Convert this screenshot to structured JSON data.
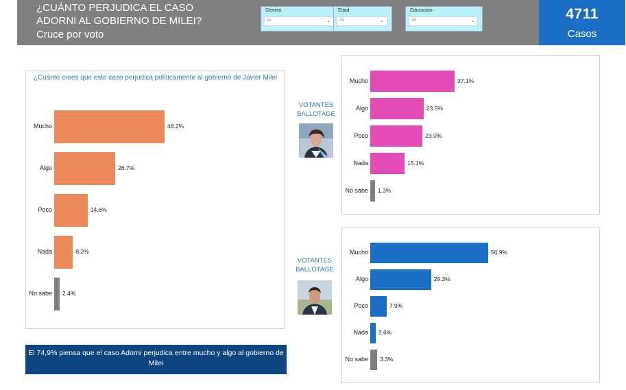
{
  "header": {
    "title": "¿CUÁNTO PERJUDICA EL CASO ADORNI AL GOBIERNO DE MILEI?",
    "subtitle": "Cruce por voto"
  },
  "filters": [
    {
      "label": "Género",
      "value": "All"
    },
    {
      "label": "Edad",
      "value": "All"
    },
    {
      "label": "Educación",
      "value": "All"
    }
  ],
  "cases": {
    "count": "4711",
    "label": "Casos"
  },
  "vot_label": "VOTANTES BALLOTAGE",
  "banner": "El 74,9% piensa que el caso Adorni perjudica entre mucho y algo al gobierno de Milei",
  "colors": {
    "overall": "#ec8a5e",
    "milei": "#e24bb5",
    "massa": "#1a6fc4",
    "no_sabe": "#7f7f7f"
  },
  "chart_data": [
    {
      "type": "bar",
      "orientation": "horizontal",
      "title": "¿Cuánto crees que este caso perjudica políticamente al gobierno de Javier Milei",
      "categories": [
        "Mucho",
        "Algo",
        "Poco",
        "Nada",
        "No sabe"
      ],
      "values": [
        48.2,
        26.7,
        14.6,
        8.2,
        2.4
      ],
      "labels": [
        "48.2%",
        "26.7%",
        "14.6%",
        "8.2%",
        "2.4%"
      ]
    },
    {
      "type": "bar",
      "orientation": "horizontal",
      "title": "",
      "categories": [
        "Mucho",
        "Algo",
        "Poco",
        "Nada",
        "No sabe"
      ],
      "values": [
        37.1,
        23.5,
        23.0,
        15.1,
        1.3
      ],
      "labels": [
        "37.1%",
        "23.5%",
        "23.0%",
        "15.1%",
        "1.3%"
      ]
    },
    {
      "type": "bar",
      "orientation": "horizontal",
      "title": "",
      "categories": [
        "Mucho",
        "Algo",
        "Poco",
        "Nada",
        "No sabe"
      ],
      "values": [
        56.9,
        29.3,
        7.9,
        2.6,
        3.3
      ],
      "labels": [
        "56.9%",
        "29.3%",
        "7.9%",
        "2.6%",
        "3.3%"
      ]
    }
  ]
}
